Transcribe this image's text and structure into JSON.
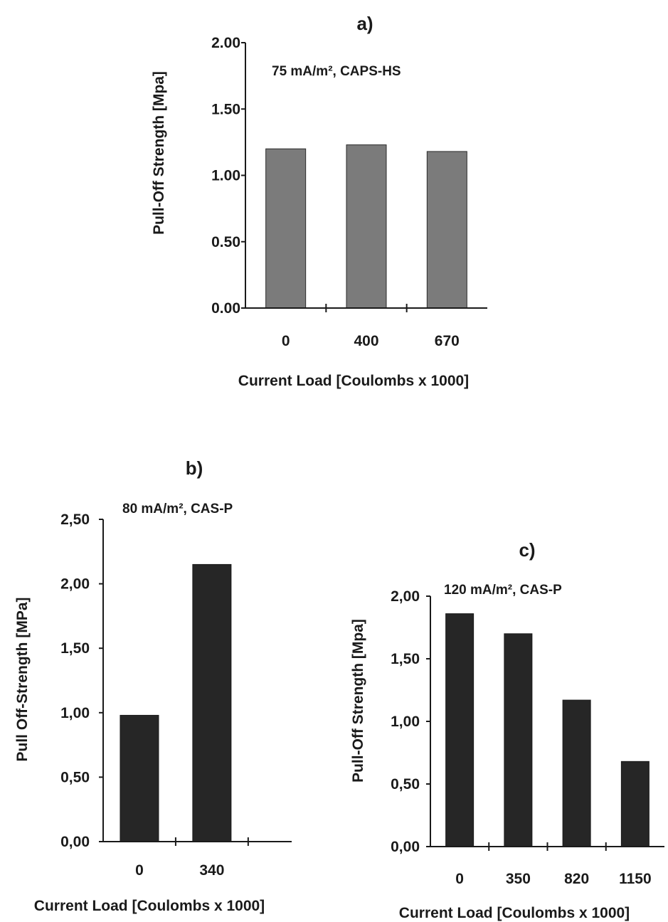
{
  "chart_data": [
    {
      "type": "bar",
      "panel_label": "a)",
      "annotation": "75 mA/m², CAPS-HS",
      "xlabel": "Current Load [Coulombs x 1000]",
      "ylabel": "Pull-Off Strength  [Mpa]",
      "categories": [
        "0",
        "400",
        "670"
      ],
      "values": [
        1.2,
        1.23,
        1.18
      ],
      "ylim": [
        0,
        2
      ],
      "yticks": [
        0,
        0.5,
        1,
        1.5,
        2
      ],
      "ytick_labels": [
        "0.00",
        "0.50",
        "1.00",
        "1.50",
        "2.00"
      ],
      "bar_color": "#7b7b7b",
      "grid": false
    },
    {
      "type": "bar",
      "panel_label": "b)",
      "annotation": "80 mA/m², CAS-P",
      "xlabel": "Current Load [Coulombs x 1000]",
      "ylabel": "Pull Off-Strength [MPa]",
      "categories": [
        "0",
        "340"
      ],
      "values": [
        0.98,
        2.15
      ],
      "ylim": [
        0,
        2.5
      ],
      "yticks": [
        0,
        0.5,
        1,
        1.5,
        2,
        2.5
      ],
      "ytick_labels": [
        "0,00",
        "0,50",
        "1,00",
        "1,50",
        "2,00",
        "2,50"
      ],
      "bar_color": "#262626",
      "grid": false
    },
    {
      "type": "bar",
      "panel_label": "c)",
      "annotation": "120 mA/m², CAS-P",
      "xlabel": "Current Load [Coulombs x 1000]",
      "ylabel": "Pull-Off Strength  [Mpa]",
      "categories": [
        "0",
        "350",
        "820",
        "1150"
      ],
      "values": [
        1.86,
        1.7,
        1.17,
        0.68
      ],
      "ylim": [
        0,
        2
      ],
      "yticks": [
        0,
        0.5,
        1,
        1.5,
        2
      ],
      "ytick_labels": [
        "0,00",
        "0,50",
        "1,00",
        "1,50",
        "2,00"
      ],
      "bar_color": "#262626",
      "grid": false
    }
  ]
}
